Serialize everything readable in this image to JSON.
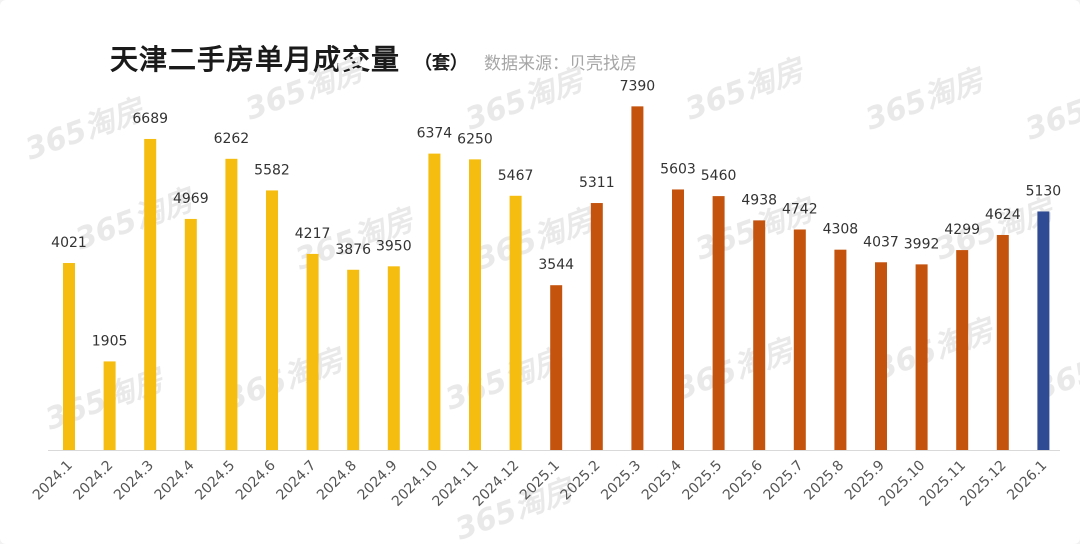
{
  "chart_title": {
    "main": "天津二手房单月成交量",
    "unit": "（套）",
    "source": "数据来源：贝壳找房"
  },
  "watermark": "365淘房",
  "colors": {
    "year2024": "#f5bd0f",
    "year2025": "#c4530d",
    "year2026": "#2f4b93",
    "axis": "#d9d9d9"
  },
  "chart_data": {
    "type": "bar",
    "title": "天津二手房单月成交量",
    "unit": "（套）",
    "source": "数据来源：贝壳找房",
    "categories": [
      "2024.1",
      "2024.2",
      "2024.3",
      "2024.4",
      "2024.5",
      "2024.6",
      "2024.7",
      "2024.8",
      "2024.9",
      "2024.10",
      "2024.11",
      "2024.12",
      "2025.1",
      "2025.2",
      "2025.3",
      "2025.4",
      "2025.5",
      "2025.6",
      "2025.7",
      "2025.8",
      "2025.9",
      "2025.10",
      "2025.11",
      "2025.12",
      "2026.1"
    ],
    "values": [
      4021,
      1905,
      6689,
      4969,
      6262,
      5582,
      4217,
      3876,
      3950,
      6374,
      6250,
      5467,
      3544,
      5311,
      7390,
      5603,
      5460,
      4938,
      4742,
      4308,
      4037,
      3992,
      4299,
      4624,
      5130
    ],
    "color_groups": [
      "year2024",
      "year2024",
      "year2024",
      "year2024",
      "year2024",
      "year2024",
      "year2024",
      "year2024",
      "year2024",
      "year2024",
      "year2024",
      "year2024",
      "year2025",
      "year2025",
      "year2025",
      "year2025",
      "year2025",
      "year2025",
      "year2025",
      "year2025",
      "year2025",
      "year2025",
      "year2025",
      "year2025",
      "year2026"
    ],
    "ylim": [
      0,
      7500
    ],
    "grid": false,
    "legend": "none",
    "data_labels": true
  }
}
